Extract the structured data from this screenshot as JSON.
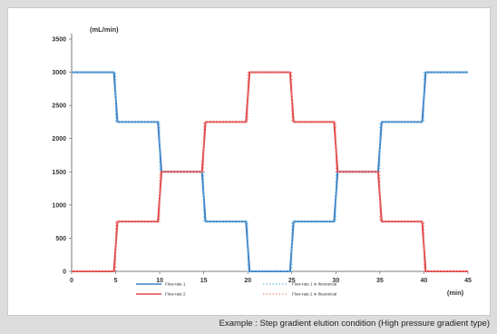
{
  "caption": "Example : Step gradient elution condition (High pressure gradient type)",
  "chart_data": {
    "type": "line",
    "xlabel": "(min)",
    "ylabel": "(mL/min)",
    "xlim": [
      0,
      45
    ],
    "ylim": [
      0,
      3500
    ],
    "xticks": [
      "0",
      "5",
      "10",
      "15",
      "20",
      "25",
      "30",
      "35",
      "40",
      "45"
    ],
    "yticks": [
      "0",
      "500",
      "1000",
      "1500",
      "2000",
      "2500",
      "3000",
      "3500"
    ],
    "grid": false,
    "legend_position": "bottom",
    "series": [
      {
        "name": "Flow-rate 1",
        "color": "#3f7fc4",
        "style": "solid",
        "points": [
          [
            0,
            3000
          ],
          [
            4.8,
            3000
          ],
          [
            5.2,
            2250
          ],
          [
            9.8,
            2250
          ],
          [
            10.2,
            1500
          ],
          [
            14.8,
            1500
          ],
          [
            15.2,
            750
          ],
          [
            19.8,
            750
          ],
          [
            20.2,
            0
          ],
          [
            24.8,
            0
          ],
          [
            25.2,
            750
          ],
          [
            29.8,
            750
          ],
          [
            30.2,
            1500
          ],
          [
            34.8,
            1500
          ],
          [
            35.2,
            2250
          ],
          [
            39.8,
            2250
          ],
          [
            40.2,
            3000
          ],
          [
            45,
            3000
          ]
        ]
      },
      {
        "name": "Flow-rate 2",
        "color": "#e04848",
        "style": "solid",
        "points": [
          [
            0,
            0
          ],
          [
            4.8,
            0
          ],
          [
            5.2,
            750
          ],
          [
            9.8,
            750
          ],
          [
            10.2,
            1500
          ],
          [
            14.8,
            1500
          ],
          [
            15.2,
            2250
          ],
          [
            19.8,
            2250
          ],
          [
            20.2,
            3000
          ],
          [
            24.8,
            3000
          ],
          [
            25.2,
            2250
          ],
          [
            29.8,
            2250
          ],
          [
            30.2,
            1500
          ],
          [
            34.8,
            1500
          ],
          [
            35.2,
            750
          ],
          [
            39.8,
            750
          ],
          [
            40.2,
            0
          ],
          [
            45,
            0
          ]
        ]
      },
      {
        "name": "Flow-rate 1 in theoretical",
        "color": "#6cc0ea",
        "style": "dashed",
        "points": [
          [
            0,
            3000
          ],
          [
            5,
            3000
          ],
          [
            5,
            2250
          ],
          [
            10,
            2250
          ],
          [
            10,
            1500
          ],
          [
            15,
            1500
          ],
          [
            15,
            750
          ],
          [
            20,
            750
          ],
          [
            20,
            0
          ],
          [
            25,
            0
          ],
          [
            25,
            750
          ],
          [
            30,
            750
          ],
          [
            30,
            1500
          ],
          [
            35,
            1500
          ],
          [
            35,
            2250
          ],
          [
            40,
            2250
          ],
          [
            40,
            3000
          ],
          [
            45,
            3000
          ]
        ]
      },
      {
        "name": "Flow-rate 2 in theoretical",
        "color": "#f08a8a",
        "style": "dashed",
        "points": [
          [
            0,
            0
          ],
          [
            5,
            0
          ],
          [
            5,
            750
          ],
          [
            10,
            750
          ],
          [
            10,
            1500
          ],
          [
            15,
            1500
          ],
          [
            15,
            2250
          ],
          [
            20,
            2250
          ],
          [
            20,
            3000
          ],
          [
            25,
            3000
          ],
          [
            25,
            2250
          ],
          [
            30,
            2250
          ],
          [
            30,
            1500
          ],
          [
            35,
            1500
          ],
          [
            35,
            750
          ],
          [
            40,
            750
          ],
          [
            40,
            0
          ],
          [
            45,
            0
          ]
        ]
      }
    ]
  }
}
